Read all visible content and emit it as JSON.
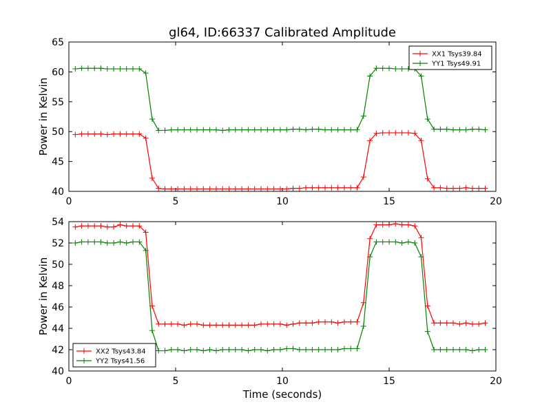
{
  "chart_data": {
    "type": "line",
    "title": "gl64, ID:66337 Calibrated Amplitude",
    "xlabel": "Time (seconds)",
    "panels": [
      {
        "ylabel": "Power in Kelvin",
        "xlim": [
          0,
          20
        ],
        "ylim": [
          40,
          65
        ],
        "xticks": [
          "0",
          "5",
          "10",
          "15",
          "20"
        ],
        "yticks": [
          "40",
          "45",
          "50",
          "55",
          "60",
          "65"
        ],
        "legend_position": "top-right",
        "x": [
          0.3,
          0.6,
          0.9,
          1.2,
          1.5,
          1.8,
          2.1,
          2.4,
          2.7,
          3.0,
          3.3,
          3.6,
          3.9,
          4.2,
          4.5,
          4.8,
          5.1,
          5.4,
          5.7,
          6.0,
          6.3,
          6.6,
          6.9,
          7.2,
          7.5,
          7.8,
          8.1,
          8.4,
          8.7,
          9.0,
          9.3,
          9.6,
          9.9,
          10.2,
          10.5,
          10.8,
          11.1,
          11.4,
          11.7,
          12.0,
          12.3,
          12.6,
          12.9,
          13.2,
          13.5,
          13.8,
          14.1,
          14.4,
          14.7,
          15.0,
          15.3,
          15.6,
          15.9,
          16.2,
          16.5,
          16.8,
          17.1,
          17.4,
          17.7,
          18.0,
          18.3,
          18.6,
          18.9,
          19.2,
          19.5
        ],
        "series": [
          {
            "name": "XX1 Tsys39.84",
            "color": "#ff0000",
            "values": [
              49.5,
              49.6,
              49.6,
              49.6,
              49.6,
              49.5,
              49.6,
              49.6,
              49.6,
              49.6,
              49.6,
              48.9,
              42.2,
              40.5,
              40.4,
              40.4,
              40.4,
              40.4,
              40.4,
              40.4,
              40.4,
              40.4,
              40.4,
              40.4,
              40.4,
              40.4,
              40.4,
              40.4,
              40.4,
              40.4,
              40.4,
              40.4,
              40.4,
              40.4,
              40.5,
              40.5,
              40.6,
              40.6,
              40.6,
              40.6,
              40.6,
              40.6,
              40.6,
              40.6,
              40.6,
              42.4,
              48.5,
              49.7,
              49.8,
              49.8,
              49.8,
              49.8,
              49.8,
              49.7,
              48.5,
              42.1,
              40.6,
              40.6,
              40.5,
              40.5,
              40.5,
              40.6,
              40.5,
              40.5,
              40.5
            ]
          },
          {
            "name": "YY1 Tsys49.91",
            "color": "#008000",
            "values": [
              60.5,
              60.6,
              60.6,
              60.6,
              60.6,
              60.5,
              60.5,
              60.5,
              60.5,
              60.5,
              60.5,
              59.8,
              52.1,
              50.2,
              50.2,
              50.3,
              50.3,
              50.3,
              50.3,
              50.3,
              50.3,
              50.3,
              50.3,
              50.2,
              50.3,
              50.3,
              50.3,
              50.3,
              50.3,
              50.3,
              50.3,
              50.3,
              50.3,
              50.3,
              50.4,
              50.4,
              50.3,
              50.4,
              50.4,
              50.3,
              50.3,
              50.3,
              50.3,
              50.3,
              50.3,
              52.6,
              59.3,
              60.6,
              60.6,
              60.6,
              60.5,
              60.5,
              60.5,
              60.5,
              59.3,
              52.1,
              50.4,
              50.4,
              50.4,
              50.3,
              50.3,
              50.3,
              50.4,
              50.4,
              50.3
            ]
          }
        ]
      },
      {
        "ylabel": "Power in Kelvin",
        "xlim": [
          0,
          20
        ],
        "ylim": [
          40,
          54
        ],
        "xticks": [
          "0",
          "5",
          "10",
          "15",
          "20"
        ],
        "yticks": [
          "40",
          "42",
          "44",
          "46",
          "48",
          "50",
          "52",
          "54"
        ],
        "legend_position": "bottom-left",
        "x": [
          0.3,
          0.6,
          0.9,
          1.2,
          1.5,
          1.8,
          2.1,
          2.4,
          2.7,
          3.0,
          3.3,
          3.6,
          3.9,
          4.2,
          4.5,
          4.8,
          5.1,
          5.4,
          5.7,
          6.0,
          6.3,
          6.6,
          6.9,
          7.2,
          7.5,
          7.8,
          8.1,
          8.4,
          8.7,
          9.0,
          9.3,
          9.6,
          9.9,
          10.2,
          10.5,
          10.8,
          11.1,
          11.4,
          11.7,
          12.0,
          12.3,
          12.6,
          12.9,
          13.2,
          13.5,
          13.8,
          14.1,
          14.4,
          14.7,
          15.0,
          15.3,
          15.6,
          15.9,
          16.2,
          16.5,
          16.8,
          17.1,
          17.4,
          17.7,
          18.0,
          18.3,
          18.6,
          18.9,
          19.2,
          19.5
        ],
        "series": [
          {
            "name": "XX2 Tsys43.84",
            "color": "#ff0000",
            "values": [
              53.5,
              53.6,
              53.6,
              53.6,
              53.6,
              53.5,
              53.5,
              53.7,
              53.6,
              53.6,
              53.6,
              53.0,
              46.1,
              44.4,
              44.4,
              44.4,
              44.4,
              44.3,
              44.4,
              44.4,
              44.3,
              44.3,
              44.3,
              44.3,
              44.3,
              44.3,
              44.3,
              44.3,
              44.3,
              44.4,
              44.4,
              44.4,
              44.4,
              44.3,
              44.4,
              44.5,
              44.5,
              44.5,
              44.6,
              44.6,
              44.6,
              44.5,
              44.6,
              44.6,
              44.6,
              46.4,
              52.4,
              53.7,
              53.7,
              53.7,
              53.8,
              53.7,
              53.7,
              53.6,
              52.5,
              46.1,
              44.5,
              44.5,
              44.5,
              44.5,
              44.4,
              44.5,
              44.4,
              44.4,
              44.5
            ]
          },
          {
            "name": "YY2 Tsys41.56",
            "color": "#008000",
            "values": [
              52.0,
              52.1,
              52.1,
              52.1,
              52.1,
              52.0,
              52.0,
              52.1,
              52.0,
              52.1,
              52.1,
              51.3,
              43.8,
              41.9,
              41.9,
              42.0,
              42.0,
              41.9,
              42.0,
              42.0,
              41.9,
              42.0,
              41.9,
              42.0,
              42.0,
              42.0,
              42.0,
              41.9,
              42.0,
              42.0,
              41.9,
              42.0,
              42.0,
              42.1,
              42.1,
              42.0,
              42.0,
              42.0,
              42.0,
              42.0,
              42.0,
              42.0,
              42.1,
              42.1,
              42.1,
              44.2,
              50.7,
              52.1,
              52.1,
              52.1,
              52.1,
              52.0,
              52.1,
              52.0,
              50.7,
              43.7,
              42.0,
              42.0,
              42.0,
              42.0,
              42.0,
              42.0,
              41.9,
              42.0,
              42.0
            ]
          }
        ]
      }
    ]
  }
}
